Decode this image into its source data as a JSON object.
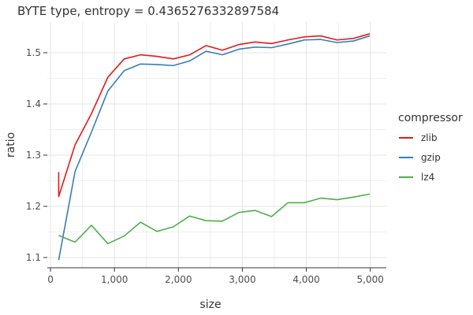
{
  "chart_data": {
    "type": "line",
    "title": "BYTE type, entropy = 0.4365276332897584",
    "xlabel": "size",
    "ylabel": "ratio",
    "xlim": [
      -50,
      5250
    ],
    "ylim": [
      1.08,
      1.56
    ],
    "x_ticks": [
      0,
      1000,
      2000,
      3000,
      4000,
      5000
    ],
    "x_tick_labels": [
      "0",
      "1,000",
      "2,000",
      "3,000",
      "4,000",
      "5,000"
    ],
    "y_ticks": [
      1.1,
      1.2,
      1.3,
      1.4,
      1.5
    ],
    "y_tick_labels": [
      "1.1",
      "1.2",
      "1.3",
      "1.4",
      "1.5"
    ],
    "grid": true,
    "legend": {
      "title": "compressor",
      "position": "right"
    },
    "x": [
      128,
      384,
      640,
      896,
      1152,
      1408,
      1664,
      1920,
      2176,
      2432,
      2688,
      2944,
      3200,
      3456,
      3712,
      3968,
      4224,
      4480,
      4736,
      4992
    ],
    "series": [
      {
        "name": "zlib",
        "color": "#e41a1c",
        "x": [
          128,
          128,
          384,
          640,
          896,
          1152,
          1408,
          1664,
          1920,
          2176,
          2432,
          2688,
          2944,
          3200,
          3456,
          3712,
          3968,
          4224,
          4480,
          4736,
          4992
        ],
        "values": [
          1.267,
          1.219,
          1.32,
          1.381,
          1.452,
          1.488,
          1.496,
          1.493,
          1.488,
          1.496,
          1.514,
          1.505,
          1.516,
          1.521,
          1.518,
          1.525,
          1.531,
          1.533,
          1.525,
          1.528,
          1.537
        ]
      },
      {
        "name": "gzip",
        "color": "#377eb8",
        "x": [
          128,
          384,
          640,
          896,
          1152,
          1408,
          1664,
          1920,
          2176,
          2432,
          2688,
          2944,
          3200,
          3456,
          3712,
          3968,
          4224,
          4480,
          4736,
          4992
        ],
        "values": [
          1.095,
          1.268,
          1.345,
          1.425,
          1.465,
          1.478,
          1.477,
          1.475,
          1.484,
          1.503,
          1.496,
          1.507,
          1.511,
          1.51,
          1.517,
          1.525,
          1.526,
          1.52,
          1.523,
          1.533
        ]
      },
      {
        "name": "lz4",
        "color": "#4daf4a",
        "x": [
          128,
          384,
          640,
          896,
          1152,
          1408,
          1664,
          1920,
          2176,
          2432,
          2688,
          2944,
          3200,
          3456,
          3712,
          3968,
          4224,
          4480,
          4736,
          4992
        ],
        "values": [
          1.143,
          1.13,
          1.163,
          1.127,
          1.142,
          1.169,
          1.151,
          1.16,
          1.181,
          1.172,
          1.171,
          1.188,
          1.192,
          1.18,
          1.207,
          1.207,
          1.216,
          1.213,
          1.218,
          1.224
        ]
      }
    ]
  }
}
